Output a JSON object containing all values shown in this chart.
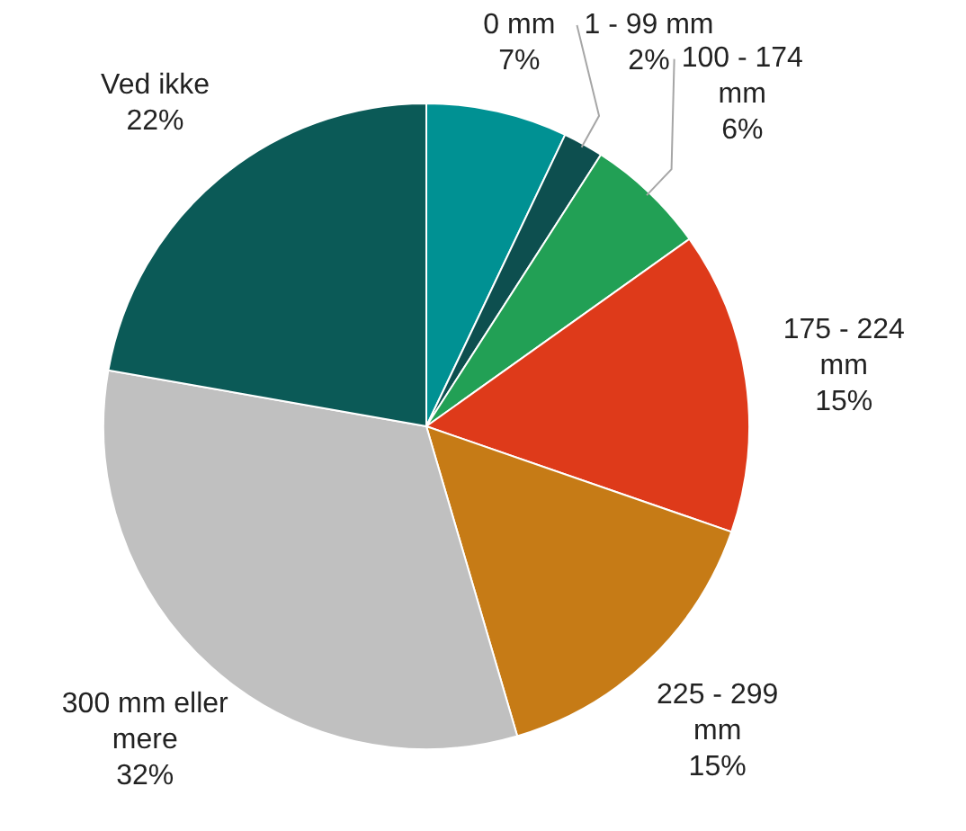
{
  "chart_data": {
    "type": "pie",
    "categories": [
      "0 mm",
      "1 - 99 mm",
      "100 - 174 mm",
      "175 - 224 mm",
      "225 - 299 mm",
      "300 mm eller mere",
      "Ved ikke"
    ],
    "values": [
      7,
      2,
      6,
      15,
      15,
      32,
      22
    ],
    "value_labels": [
      "7%",
      "2%",
      "6%",
      "15%",
      "15%",
      "32%",
      "22%"
    ],
    "colors": [
      "#009193",
      "#0d4f4f",
      "#22a055",
      "#de3a1a",
      "#c67b16",
      "#c0c0c0",
      "#0b5a57"
    ],
    "legend": false
  }
}
